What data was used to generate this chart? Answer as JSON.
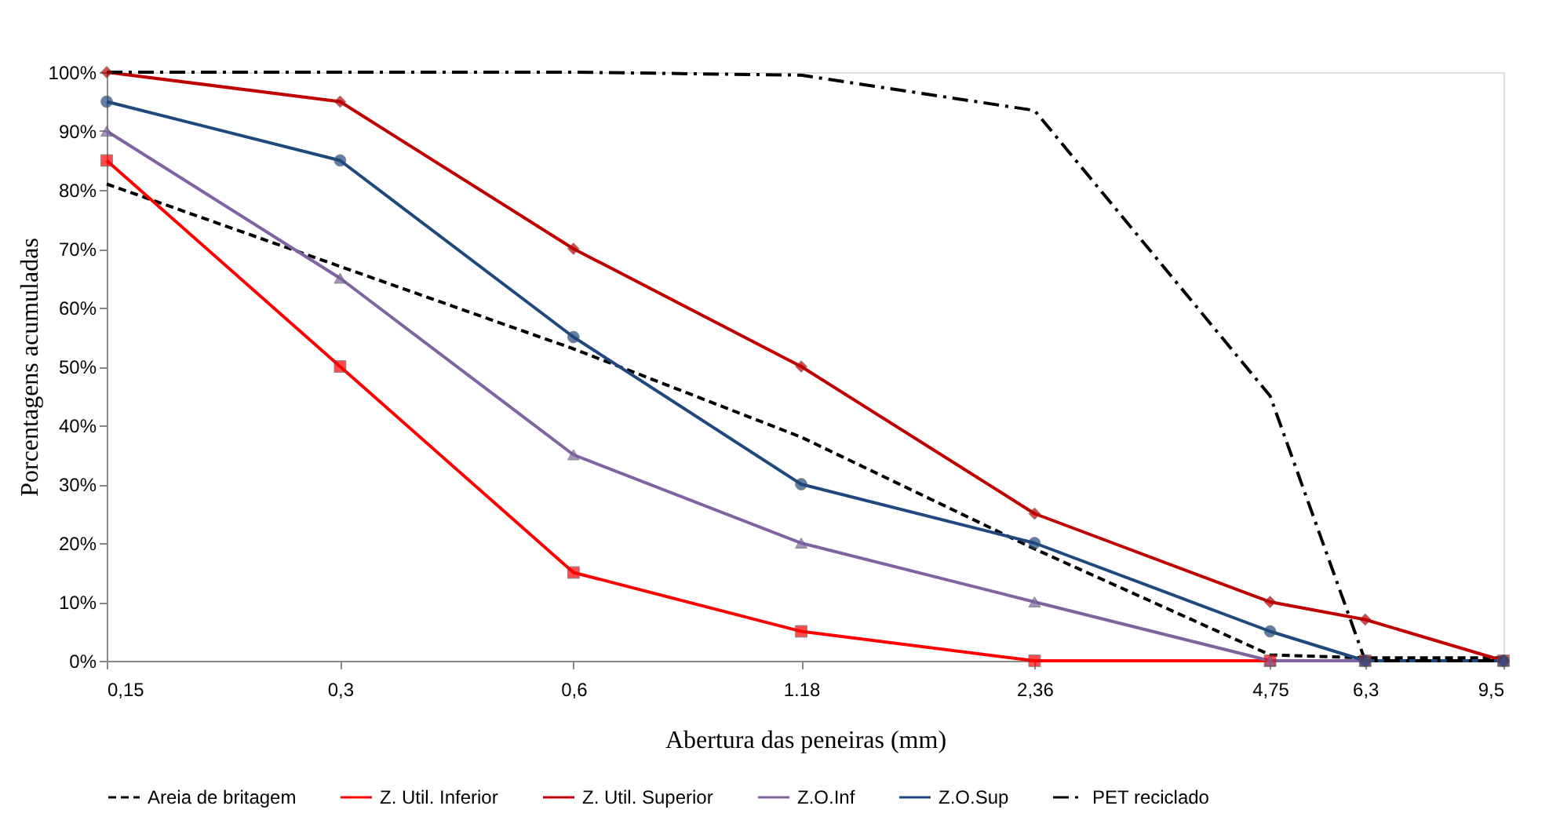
{
  "chart_data": {
    "type": "line",
    "xlabel": "Abertura das peneiras (mm)",
    "ylabel": "Porcentagens acumuladas",
    "x": [
      0.15,
      0.3,
      0.6,
      1.18,
      2.36,
      4.75,
      6.3,
      9.5
    ],
    "log": "x",
    "xlim": [
      0.15,
      9.5
    ],
    "xticks": [
      {
        "value": 0.15,
        "label": "0,15"
      },
      {
        "value": 0.3,
        "label": "0,3"
      },
      {
        "value": 0.6,
        "label": "0,6"
      },
      1.18,
      {
        "value": 2.36,
        "label": "2,36"
      },
      {
        "value": 4.75,
        "label": "4,75"
      },
      {
        "value": 6.3,
        "label": "6,3"
      },
      {
        "value": 9.5,
        "label": "9,5"
      }
    ],
    "ylim": [
      0,
      100
    ],
    "yticks": [
      {
        "value": 0,
        "label": "0%"
      },
      {
        "value": 10,
        "label": "10%"
      },
      {
        "value": 20,
        "label": "20%"
      },
      {
        "value": 30,
        "label": "30%"
      },
      {
        "value": 40,
        "label": "40%"
      },
      {
        "value": 50,
        "label": "50%"
      },
      {
        "value": 60,
        "label": "60%"
      },
      {
        "value": 70,
        "label": "70%"
      },
      {
        "value": 80,
        "label": "80%"
      },
      {
        "value": 90,
        "label": "90%"
      },
      {
        "value": 100,
        "label": "100%"
      }
    ],
    "grid": false,
    "legend": "bottom",
    "series": [
      {
        "name": "Areia de britagem",
        "color": "#000000",
        "line_style": "dashed",
        "marker": "none",
        "values": [
          81,
          67,
          53,
          38,
          19,
          1,
          0.5,
          0.5
        ]
      },
      {
        "name": "Z. Util. Inferior",
        "color": "#ff0000",
        "marker": "square",
        "values": [
          85,
          50,
          15,
          5,
          0,
          0,
          0,
          0
        ]
      },
      {
        "name": "Z. Util. Superior",
        "color": "#c00000",
        "marker": "diamond",
        "values": [
          100,
          95,
          70,
          50,
          25,
          10,
          7,
          0
        ]
      },
      {
        "name": "Z.O.Inf",
        "color": "#8064a2",
        "marker": "triangle",
        "values": [
          90,
          65,
          35,
          20,
          10,
          0,
          0,
          0
        ]
      },
      {
        "name": "Z.O.Sup",
        "color": "#1f497d",
        "marker": "circle",
        "values": [
          95,
          85,
          55,
          30,
          20,
          5,
          0,
          0
        ]
      },
      {
        "name": "PET reciclado",
        "color": "#000000",
        "line_style": "dashdot",
        "marker": "none",
        "values": [
          100,
          100,
          100,
          99.5,
          93.5,
          45,
          0,
          0
        ]
      }
    ]
  }
}
